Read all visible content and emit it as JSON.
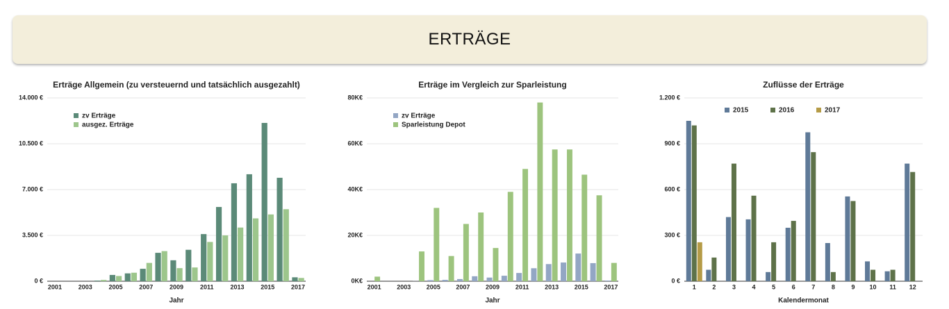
{
  "header": {
    "title": "ERTRÄGE"
  },
  "chart_data": [
    {
      "type": "bar",
      "title": "Erträge Allgemein (zu versteuernd und tatsächlich ausgezahlt)",
      "x_label": "Jahr",
      "categories": [
        "2001",
        null,
        "2003",
        null,
        "2005",
        null,
        "2007",
        null,
        "2009",
        null,
        "2011",
        null,
        "2013",
        null,
        "2015",
        null,
        "2017"
      ],
      "series": [
        {
          "name": "zv Erträge",
          "color": "#5b8a78",
          "values": [
            0,
            0,
            0,
            50,
            480,
            600,
            950,
            2170,
            1600,
            2400,
            3600,
            5670,
            7480,
            8170,
            12090,
            7900,
            300
          ]
        },
        {
          "name": "ausgez. Erträge",
          "color": "#9dc68c",
          "values": [
            0,
            0,
            0,
            100,
            400,
            650,
            1400,
            2300,
            1000,
            1050,
            3000,
            3500,
            4100,
            4800,
            5100,
            5500,
            250
          ]
        }
      ],
      "ylim": [
        0,
        14000
      ],
      "yticks": [
        {
          "value": 0,
          "label": "0 €"
        },
        {
          "value": 3500,
          "label": "3.500 €"
        },
        {
          "value": 7000,
          "label": "7.000 €"
        },
        {
          "value": 10500,
          "label": "10.500 €"
        },
        {
          "value": 14000,
          "label": "14.000 €"
        }
      ],
      "grid": true,
      "legend": "top-left-vertical"
    },
    {
      "type": "bar",
      "title": "Erträge im Vergleich zur Sparleistung",
      "x_label": "Jahr",
      "categories": [
        "2001",
        null,
        "2003",
        null,
        "2005",
        null,
        "2007",
        null,
        "2009",
        null,
        "2011",
        null,
        "2013",
        null,
        "2015",
        null,
        "2017"
      ],
      "series": [
        {
          "name": "zv Erträge",
          "color": "#93a6c4",
          "values": [
            0,
            0,
            0,
            50,
            480,
            600,
            950,
            2170,
            1600,
            2400,
            3600,
            5670,
            7480,
            8170,
            12090,
            7900,
            300
          ]
        },
        {
          "name": "Sparleistung Depot",
          "color": "#9dc47e",
          "values": [
            2000,
            0,
            0,
            13000,
            32000,
            11000,
            25000,
            30000,
            14500,
            39000,
            49000,
            78000,
            57500,
            57500,
            46500,
            37500,
            8000
          ]
        }
      ],
      "ylim": [
        0,
        80000
      ],
      "yticks": [
        {
          "value": 0,
          "label": "0K€"
        },
        {
          "value": 20000,
          "label": "20K€"
        },
        {
          "value": 40000,
          "label": "40K€"
        },
        {
          "value": 60000,
          "label": "60K€"
        },
        {
          "value": 80000,
          "label": "80K€"
        }
      ],
      "grid": true,
      "legend": "top-left-vertical"
    },
    {
      "type": "bar",
      "title": "Zuflüsse der Erträge",
      "x_label": "Kalendermonat",
      "categories": [
        "1",
        "2",
        "3",
        "4",
        "5",
        "6",
        "7",
        "8",
        "9",
        "10",
        "11",
        "12"
      ],
      "series": [
        {
          "name": "2015",
          "color": "#5f7a98",
          "values": [
            1050,
            75,
            420,
            405,
            60,
            350,
            975,
            250,
            555,
            130,
            65,
            770
          ]
        },
        {
          "name": "2016",
          "color": "#5e7249",
          "values": [
            1020,
            155,
            770,
            560,
            255,
            395,
            845,
            60,
            525,
            75,
            75,
            715
          ]
        },
        {
          "name": "2017",
          "color": "#b59b47",
          "values": [
            255,
            null,
            null,
            null,
            null,
            null,
            null,
            null,
            null,
            null,
            null,
            null
          ]
        }
      ],
      "ylim": [
        0,
        1200
      ],
      "yticks": [
        {
          "value": 0,
          "label": "0 €"
        },
        {
          "value": 300,
          "label": "300 €"
        },
        {
          "value": 600,
          "label": "600 €"
        },
        {
          "value": 900,
          "label": "900 €"
        },
        {
          "value": 1200,
          "label": "1.200 €"
        }
      ],
      "grid": true,
      "legend": "top-horizontal"
    }
  ]
}
